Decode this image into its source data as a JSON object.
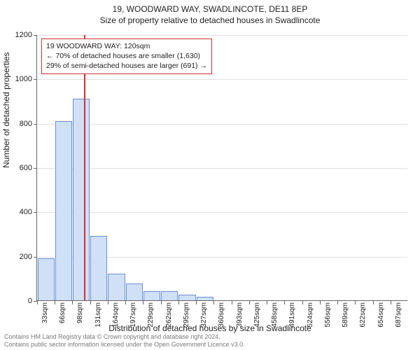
{
  "title_line1": "19, WOODWARD WAY, SWADLINCOTE, DE11 8EP",
  "title_line2": "Size of property relative to detached houses in Swadlincote",
  "title_fontsize_1": 12,
  "title_fontsize_2": 12,
  "yaxis_title": "Number of detached properties",
  "xaxis_title": "Distribution of detached houses by size in Swadlincote",
  "footer_line1": "Contains HM Land Registry data © Crown copyright and database right 2024.",
  "footer_line2": "Contains public sector information licensed under the Open Government Licence v3.0.",
  "annotation": {
    "line1": "19 WOODWARD WAY: 120sqm",
    "line2": "← 70% of detached houses are smaller (1,630)",
    "line3": "29% of semi-detached houses are larger (691) →",
    "border_color": "#cc3333"
  },
  "chart": {
    "type": "histogram",
    "background_color": "#ffffff",
    "grid_color": "#e0e0e0",
    "axis_color": "#666666",
    "bar_fill": "#cfe0f7",
    "bar_stroke": "#6b8fcf",
    "marker_color": "#cc3333",
    "marker_x_value": 120,
    "ylim": [
      0,
      1200
    ],
    "ytick_step": 200,
    "x_start": 33,
    "x_bin_width": 32.75,
    "x_labels": [
      "33sqm",
      "66sqm",
      "98sqm",
      "131sqm",
      "164sqm",
      "197sqm",
      "229sqm",
      "262sqm",
      "295sqm",
      "327sqm",
      "360sqm",
      "393sqm",
      "425sqm",
      "458sqm",
      "491sqm",
      "524sqm",
      "556sqm",
      "589sqm",
      "622sqm",
      "654sqm",
      "687sqm"
    ],
    "values": [
      190,
      810,
      910,
      290,
      120,
      75,
      40,
      40,
      25,
      15,
      0,
      0,
      0,
      0,
      0,
      0,
      0,
      0,
      0,
      0,
      0
    ],
    "label_fontsize": 10,
    "axis_title_fontsize": 12
  }
}
